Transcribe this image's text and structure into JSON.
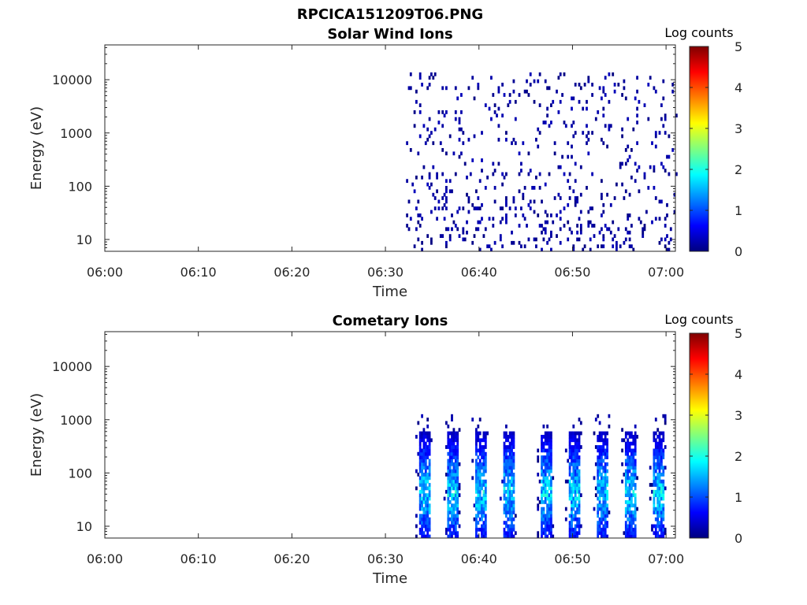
{
  "figure_title": "RPCICA151209T06.PNG",
  "colorbar_colors": [
    "#00007f",
    "#0000ff",
    "#007fff",
    "#00ffff",
    "#7fff7f",
    "#ffff00",
    "#ff7f00",
    "#ff0000",
    "#7f0000"
  ],
  "chart_data": [
    {
      "type": "heatmap",
      "title": "Solar Wind Ions",
      "xlabel": "Time",
      "ylabel": "Energy (eV)",
      "xlim": [
        "06:00",
        "07:01"
      ],
      "ylim": [
        6,
        45000
      ],
      "y_scale": "log",
      "x_ticks": [
        "06:00",
        "06:10",
        "06:20",
        "06:30",
        "06:40",
        "06:50",
        "07:00"
      ],
      "y_ticks": [
        "10",
        "100",
        "1000",
        "10000"
      ],
      "colorbar": {
        "label": "Log counts",
        "ticks": [
          "0",
          "1",
          "2",
          "3",
          "4",
          "5"
        ],
        "range": [
          0,
          5
        ]
      },
      "data_start": "06:32",
      "data_end": "07:01",
      "pattern": "sparse",
      "count_range": [
        0,
        0.3
      ]
    },
    {
      "type": "heatmap",
      "title": "Cometary Ions",
      "xlabel": "Time",
      "ylabel": "Energy (eV)",
      "xlim": [
        "06:00",
        "07:01"
      ],
      "ylim": [
        6,
        45000
      ],
      "y_scale": "log",
      "x_ticks": [
        "06:00",
        "06:10",
        "06:20",
        "06:30",
        "06:40",
        "06:50",
        "07:00"
      ],
      "y_ticks": [
        "10",
        "100",
        "1000",
        "10000"
      ],
      "colorbar": {
        "label": "Log counts",
        "ticks": [
          "0",
          "1",
          "2",
          "3",
          "4",
          "5"
        ],
        "range": [
          0,
          5
        ]
      },
      "data_start": "06:32",
      "data_end": "07:01",
      "pattern": "bursts",
      "burst_centers": [
        "06:34",
        "06:37",
        "06:40",
        "06:43",
        "06:47",
        "06:50",
        "06:53",
        "06:56",
        "06:59"
      ],
      "burst_peak_energy_ev": 40,
      "burst_max_energy_ev": 600,
      "count_range": [
        0,
        2.2
      ]
    }
  ]
}
